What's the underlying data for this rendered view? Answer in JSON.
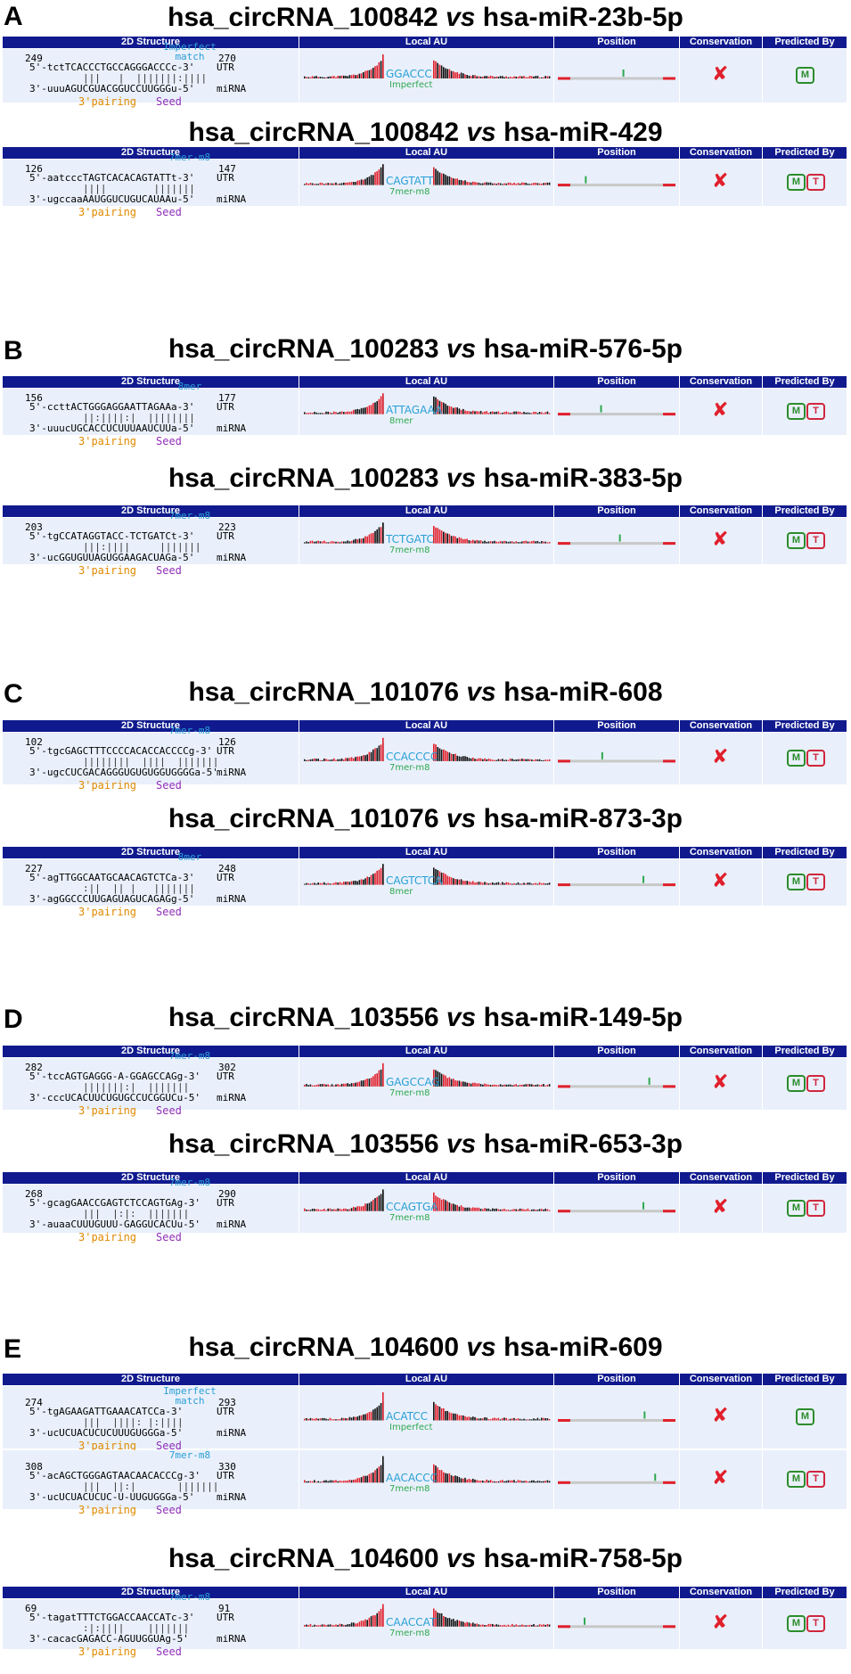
{
  "header": {
    "col1": "2D Structure",
    "col2": "Local AU",
    "col3": "Position",
    "col4": "Conservation",
    "col5": "Predicted By"
  },
  "labels": {
    "pairing": "3'pairing",
    "seed": "Seed",
    "utr": "UTR",
    "mirna": "miRNA",
    "conservation": "✘"
  },
  "panels": [
    {
      "letter": "A"
    },
    {
      "letter": "B"
    },
    {
      "letter": "C"
    },
    {
      "letter": "D"
    },
    {
      "letter": "E"
    }
  ],
  "titles": [
    {
      "circ": "hsa_circRNA_100842",
      "vs": "vs",
      "mir": "hsa-miR-23b-5p"
    },
    {
      "circ": "hsa_circRNA_100842",
      "vs": "vs",
      "mir": "hsa-miR-429"
    },
    {
      "circ": "hsa_circRNA_100283",
      "vs": "vs",
      "mir": "hsa-miR-576-5p"
    },
    {
      "circ": "hsa_circRNA_100283",
      "vs": "vs",
      "mir": "hsa-miR-383-5p"
    },
    {
      "circ": "hsa_circRNA_101076",
      "vs": "vs",
      "mir": "hsa-miR-608"
    },
    {
      "circ": "hsa_circRNA_101076",
      "vs": "vs",
      "mir": "hsa-miR-873-3p"
    },
    {
      "circ": "hsa_circRNA_103556",
      "vs": "vs",
      "mir": "hsa-miR-149-5p"
    },
    {
      "circ": "hsa_circRNA_103556",
      "vs": "vs",
      "mir": "hsa-miR-653-3p"
    },
    {
      "circ": "hsa_circRNA_104600",
      "vs": "vs",
      "mir": "hsa-miR-609"
    },
    {
      "circ": "hsa_circRNA_104600",
      "vs": "vs",
      "mir": "hsa-miR-758-5p"
    }
  ],
  "rows": [
    {
      "start": "249",
      "end": "270",
      "site_type": "Imperfect match",
      "utr": "5'-tctTCACCCTGCCAGGGACCCc-3'",
      "bars": "|||   |  |||||||:||||",
      "mirna": "3'-uuuAGUCGUACGGUCCUUGGGu-5'",
      "au_seq": "GGACCC",
      "au_type": "Imperfect",
      "pos": 0.55,
      "pred": [
        "M"
      ]
    },
    {
      "start": "126",
      "end": "147",
      "site_type": "7mer-m8",
      "utr": "5'-aatcccTAGTCACACAGTATTt-3'",
      "bars": "||||        |||||||",
      "mirna": "3'-ugccaaAAUGGUCUGUCAUAAu-5'",
      "au_seq": "CAGTATT",
      "au_type": "7mer-m8",
      "pos": 0.23,
      "pred": [
        "M",
        "T"
      ]
    },
    {
      "start": "156",
      "end": "177",
      "site_type": "8mer",
      "utr": "5'-ccttACTGGGAGGAATTAGAAa-3'",
      "bars": "||:||||:|  ||||||||",
      "mirna": "3'-uuucUGCACCUCUUUAAUCUUa-5'",
      "au_seq": "ATTAGAAA",
      "au_type": "8mer",
      "pos": 0.36,
      "pred": [
        "M",
        "T"
      ]
    },
    {
      "start": "203",
      "end": "223",
      "site_type": "7mer-m8",
      "utr": "5'-tgCCATAGGTACC-TCTGATCt-3'",
      "bars": "|||:||||     |||||||",
      "mirna": "3'-ucGGUGUUAGUGGAAGACUAGa-5'",
      "au_seq": "TCTGATC",
      "au_type": "7mer-m8",
      "pos": 0.52,
      "pred": [
        "M",
        "T"
      ]
    },
    {
      "start": "102",
      "end": "126",
      "site_type": "7mer-m8",
      "utr": "5'-tgcGAGCTTTCCCCACACCACCCCg-3'",
      "bars": "||||||||  ||||  |||||||",
      "mirna": "3'-ugcCUCGACAGGGUGUGUGGUGGGGa-5'",
      "au_seq": "CCACCCC",
      "au_type": "7mer-m8",
      "pos": 0.37,
      "pred": [
        "M",
        "T"
      ]
    },
    {
      "start": "227",
      "end": "248",
      "site_type": "8mer",
      "utr": "5'-agTTGGCAATGCAACAGTCTCa-3'",
      "bars": ":||  || |   |||||||",
      "mirna": "3'-agGGCCCUUGAGUAGUCAGAGg-5'",
      "au_seq": "CAGTCTCA",
      "au_type": "8mer",
      "pos": 0.72,
      "pred": [
        "M",
        "T"
      ]
    },
    {
      "start": "282",
      "end": "302",
      "site_type": "7mer-m8",
      "utr": "5'-tccAGTGAGGG-A-GGAGCCAGg-3'",
      "bars": "|||||||:|  |||||||",
      "mirna": "3'-cccUCACUUCUGUGCCUCGGUCu-5'",
      "au_seq": "GAGCCAG",
      "au_type": "7mer-m8",
      "pos": 0.77,
      "pred": [
        "M",
        "T"
      ]
    },
    {
      "start": "268",
      "end": "290",
      "site_type": "7mer-m8",
      "utr": "5'-gcagGAACCGAGTCTCCAGTGAg-3'",
      "bars": "|||  |:|:  |||||||",
      "mirna": "3'-auaaCUUUGUUU-GAGGUCACUu-5'",
      "au_seq": "CCAGTGA",
      "au_type": "7mer-m8",
      "pos": 0.72,
      "pred": [
        "M",
        "T"
      ]
    },
    {
      "start": "274",
      "end": "293",
      "site_type": "Imperfect match",
      "utr": "5'-tgAGAAGATTGAAACATCCa-3'",
      "bars": "|||  ||||: |:||||",
      "mirna": "3'-ucUCUACUCUCUUUGUGGGa-5'",
      "au_seq": "ACATCC",
      "au_type": "Imperfect",
      "pos": 0.73,
      "pred": [
        "M"
      ]
    },
    {
      "start": "308",
      "end": "330",
      "site_type": "7mer-m8",
      "utr": "5'-acAGCTGGGAGTAACAACACCCg-3'",
      "bars": "|||  ||:|       |||||||",
      "mirna": "3'-ucUCUACUCUC-U-UUGUGGGa-5'",
      "au_seq": "AACACCC",
      "au_type": "7mer-m8",
      "pos": 0.82,
      "pred": [
        "M",
        "T"
      ]
    },
    {
      "start": "69",
      "end": "91",
      "site_type": "7mer-m8",
      "utr": "5'-tagatTTTCTGGACCAACCATc-3'",
      "bars": ":|:||||    |||||||",
      "mirna": "3'-cacacGAGACC-AGUUGGUAg-5'",
      "au_seq": "CAACCAT",
      "au_type": "7mer-m8",
      "pos": 0.22,
      "pred": [
        "M",
        "T"
      ]
    }
  ]
}
